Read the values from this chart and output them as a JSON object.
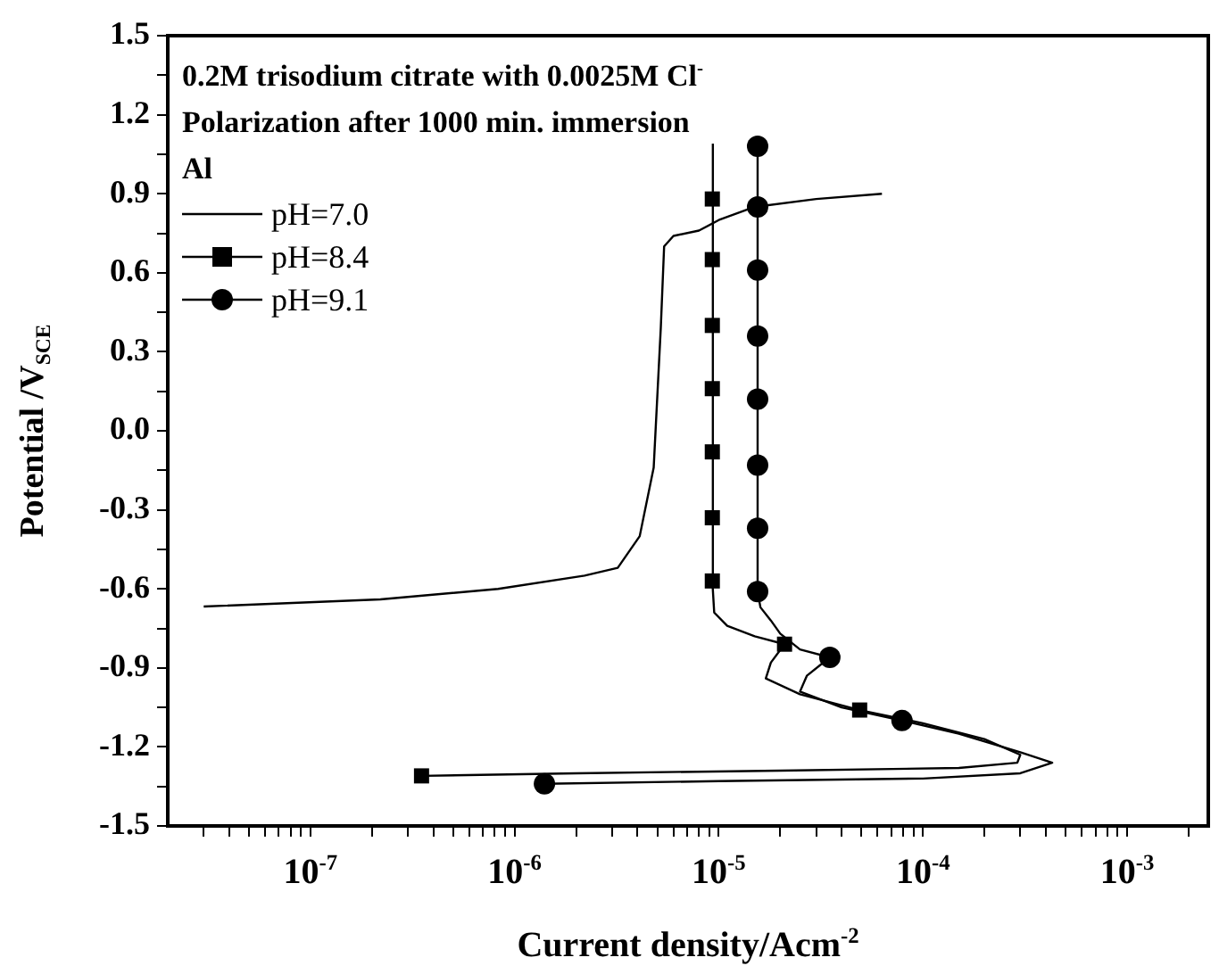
{
  "chart_data": {
    "type": "line",
    "xlabel": "Current density/Acm$^{-2}$",
    "ylabel": "Potential /V$_{SCE}$",
    "annotations": [
      "0.2M trisodium citrate with 0.0025M Cl$^{-}$",
      "Polarization after 1000 min. immersion",
      "Al"
    ],
    "log": "x",
    "grid": false,
    "legend": "top left",
    "line_style": "solid",
    "xlim": [
      2e-08,
      0.0025
    ],
    "xticks": [
      {
        "value": 3e-08,
        "label": null
      },
      {
        "value": 4e-08,
        "label": null
      },
      {
        "value": 5e-08,
        "label": null
      },
      {
        "value": 6e-08,
        "label": null
      },
      {
        "value": 7e-08,
        "label": null
      },
      {
        "value": 8e-08,
        "label": null
      },
      {
        "value": 9e-08,
        "label": null
      },
      {
        "value": 1e-07,
        "label": "10$^{-7}$"
      },
      {
        "value": 2e-07,
        "label": null
      },
      {
        "value": 3e-07,
        "label": null
      },
      {
        "value": 4e-07,
        "label": null
      },
      {
        "value": 5e-07,
        "label": null
      },
      {
        "value": 6e-07,
        "label": null
      },
      {
        "value": 7e-07,
        "label": null
      },
      {
        "value": 8e-07,
        "label": null
      },
      {
        "value": 9e-07,
        "label": null
      },
      {
        "value": 1e-06,
        "label": "10$^{-6}$"
      },
      {
        "value": 2e-06,
        "label": null
      },
      {
        "value": 3e-06,
        "label": null
      },
      {
        "value": 4e-06,
        "label": null
      },
      {
        "value": 5e-06,
        "label": null
      },
      {
        "value": 6e-06,
        "label": null
      },
      {
        "value": 7e-06,
        "label": null
      },
      {
        "value": 8e-06,
        "label": null
      },
      {
        "value": 9e-06,
        "label": null
      },
      {
        "value": 1e-05,
        "label": "10$^{-5}$"
      },
      {
        "value": 2e-05,
        "label": null
      },
      {
        "value": 3e-05,
        "label": null
      },
      {
        "value": 4e-05,
        "label": null
      },
      {
        "value": 5e-05,
        "label": null
      },
      {
        "value": 6e-05,
        "label": null
      },
      {
        "value": 7e-05,
        "label": null
      },
      {
        "value": 8e-05,
        "label": null
      },
      {
        "value": 9e-05,
        "label": null
      },
      {
        "value": 0.0001,
        "label": "10$^{-4}$"
      },
      {
        "value": 0.0002,
        "label": null
      },
      {
        "value": 0.0003,
        "label": null
      },
      {
        "value": 0.0004,
        "label": null
      },
      {
        "value": 0.0005,
        "label": null
      },
      {
        "value": 0.0006,
        "label": null
      },
      {
        "value": 0.0007,
        "label": null
      },
      {
        "value": 0.0008,
        "label": null
      },
      {
        "value": 0.0009,
        "label": null
      },
      {
        "value": 0.001,
        "label": "10$^{-3}$"
      },
      {
        "value": 0.002,
        "label": null
      }
    ],
    "ylim": [
      -1.5,
      1.5
    ],
    "yticks": [
      {
        "value": -1.5,
        "label": "-1.5"
      },
      {
        "value": -1.35,
        "label": null
      },
      {
        "value": -1.2,
        "label": "-1.2"
      },
      {
        "value": -1.05,
        "label": null
      },
      {
        "value": -0.9,
        "label": "-0.9"
      },
      {
        "value": -0.75,
        "label": null
      },
      {
        "value": -0.6,
        "label": "-0.6"
      },
      {
        "value": -0.45,
        "label": null
      },
      {
        "value": -0.3,
        "label": "-0.3"
      },
      {
        "value": -0.15,
        "label": null
      },
      {
        "value": 0,
        "label": "0.0"
      },
      {
        "value": 0.15,
        "label": null
      },
      {
        "value": 0.3,
        "label": "0.3"
      },
      {
        "value": 0.45,
        "label": null
      },
      {
        "value": 0.6,
        "label": "0.6"
      },
      {
        "value": 0.75,
        "label": null
      },
      {
        "value": 0.9,
        "label": "0.9"
      },
      {
        "value": 1.05,
        "label": null
      },
      {
        "value": 1.2,
        "label": "1.2"
      },
      {
        "value": 1.35,
        "label": null
      },
      {
        "value": 1.5,
        "label": "1.5"
      }
    ],
    "series": [
      {
        "name": "pH=7.0",
        "type": "line",
        "marker": "none",
        "color": "#000000",
        "x": [
          3e-08,
          2.2e-07,
          8.3e-07,
          2.2e-06,
          3.2e-06,
          4.1e-06,
          4.8e-06,
          5.2e-06,
          5.4e-06,
          6e-06,
          8e-06,
          1e-05,
          1.5e-05,
          3e-05,
          6.3e-05
        ],
        "values": [
          -0.667,
          -0.64,
          -0.6,
          -0.55,
          -0.52,
          -0.4,
          -0.14,
          0.39,
          0.7,
          0.74,
          0.76,
          0.8,
          0.85,
          0.88,
          0.9
        ]
      },
      {
        "name": "pH=8.4",
        "type": "scatter",
        "marker": "square",
        "color": "#000000",
        "x": [
          3.5e-07,
          4.9e-05,
          2.1e-05,
          9.3e-06,
          9.3e-06,
          9.3e-06,
          9.3e-06,
          9.3e-06,
          9.3e-06,
          9.3e-06
        ],
        "values": [
          -1.31,
          -1.06,
          -0.81,
          -0.57,
          -0.33,
          -0.08,
          0.16,
          0.4,
          0.65,
          0.88
        ]
      },
      {
        "name": "pH=9.1",
        "type": "scatter",
        "marker": "circle",
        "color": "#000000",
        "x": [
          1.4e-06,
          7.9e-05,
          3.5e-05,
          1.55e-05,
          1.55e-05,
          1.55e-05,
          1.55e-05,
          1.55e-05,
          1.55e-05,
          1.55e-05,
          1.55e-05
        ],
        "values": [
          -1.34,
          -1.1,
          -0.86,
          -0.61,
          -0.37,
          -0.13,
          0.12,
          0.36,
          0.61,
          0.85,
          1.08
        ]
      },
      {
        "type": "line",
        "marker": "none",
        "color": "#000000",
        "x": [
          3.5e-07,
          2e-06,
          2e-05,
          0.00015,
          0.00029,
          0.0003,
          0.0002,
          0.0001,
          4.9e-05,
          2.5e-05,
          1.7e-05,
          1.8e-05,
          2.1e-05,
          1.5e-05,
          1.1e-05,
          9.5e-06,
          9.3e-06,
          9.4e-06,
          9.3e-06,
          9.4e-06,
          9.4e-06,
          9.4e-06,
          9.3e-06,
          9.3e-06
        ],
        "values": [
          -1.31,
          -1.3,
          -1.29,
          -1.28,
          -1.26,
          -1.23,
          -1.17,
          -1.11,
          -1.06,
          -1.0,
          -0.94,
          -0.88,
          -0.81,
          -0.78,
          -0.74,
          -0.69,
          -0.57,
          -0.33,
          -0.08,
          0.16,
          0.4,
          0.65,
          0.88,
          1.09
        ]
      },
      {
        "type": "line",
        "marker": "none",
        "color": "#000000",
        "x": [
          1.4e-06,
          1e-05,
          0.0001,
          0.0003,
          0.00043,
          0.0003,
          0.00015,
          7.9e-05,
          4e-05,
          2.5e-05,
          2.7e-05,
          3.5e-05,
          2.5e-05,
          2e-05,
          1.8e-05,
          1.6e-05,
          1.55e-05,
          1.55e-05,
          1.55e-05,
          1.55e-05,
          1.55e-05,
          1.55e-05,
          1.55e-05,
          1.55e-05
        ],
        "values": [
          -1.34,
          -1.33,
          -1.32,
          -1.3,
          -1.26,
          -1.22,
          -1.15,
          -1.1,
          -1.05,
          -0.99,
          -0.93,
          -0.86,
          -0.83,
          -0.77,
          -0.72,
          -0.67,
          -0.61,
          -0.37,
          -0.13,
          0.12,
          0.36,
          0.61,
          0.85,
          1.08
        ]
      }
    ]
  }
}
